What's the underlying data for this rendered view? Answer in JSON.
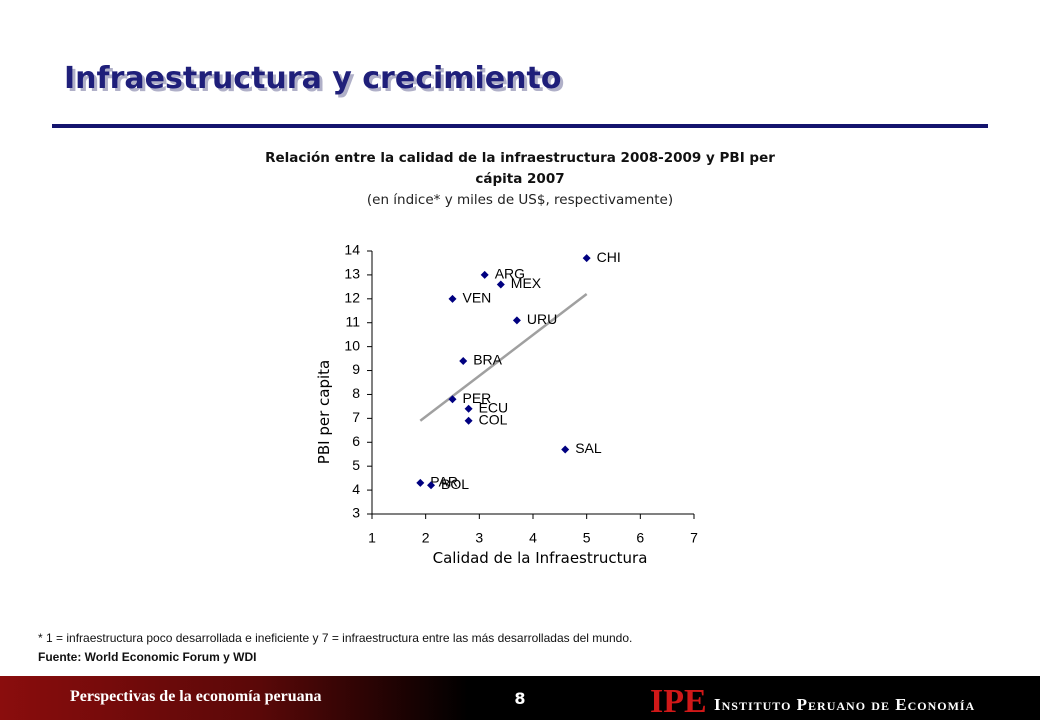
{
  "slide_title": "Infraestructura y crecimiento",
  "footnote": "* 1 = infraestructura poco desarrollada e ineficiente y 7 = infraestructura entre las más desarrolladas del mundo.",
  "source": "Fuente: World Economic Forum y WDI",
  "footer": {
    "left": "Perspectivas de la economía peruana",
    "page": "8",
    "logo": "IPE",
    "institute": "Instituto Peruano de Economía"
  },
  "chart_data": {
    "type": "scatter",
    "title": "Relación entre la calidad de la infraestructura 2008-2009 y PBI per cápita 2007",
    "subtitle": "(en índice* y miles de US$, respectivamente)",
    "x_label": "Calidad de la Infraestructura",
    "y_label": "PBI per capita",
    "color": "#000080",
    "labels": [
      "CHI",
      "ARG",
      "MEX",
      "VEN",
      "URU",
      "BRA",
      "PER",
      "ECU",
      "COL",
      "SAL",
      "PAR",
      "BOL"
    ],
    "x": [
      5.0,
      3.1,
      3.4,
      2.5,
      3.7,
      2.7,
      2.5,
      2.8,
      2.8,
      4.6,
      1.9,
      2.1
    ],
    "values": [
      13.7,
      13.0,
      12.6,
      12.0,
      11.1,
      9.4,
      7.8,
      7.4,
      6.9,
      5.7,
      4.3,
      4.2
    ],
    "trendline": {
      "x": [
        1.9,
        5.0
      ],
      "y": [
        6.9,
        12.2
      ],
      "color": "#a0a0a0"
    },
    "xlim": [
      1,
      7
    ],
    "xticks": [
      1,
      2,
      3,
      4,
      5,
      6,
      7
    ],
    "ylim": [
      3,
      14
    ],
    "yticks": [
      3,
      4,
      5,
      6,
      7,
      8,
      9,
      10,
      11,
      12,
      13,
      14
    ],
    "grid": false
  }
}
